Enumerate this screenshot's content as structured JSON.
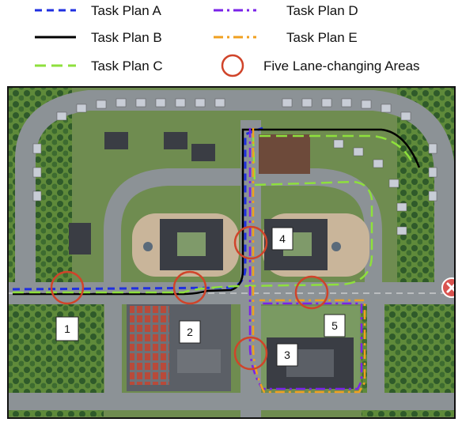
{
  "legend": {
    "items": [
      {
        "label": "Task Plan A",
        "color": "#1f2fe0",
        "style": "dashed"
      },
      {
        "label": "Task Plan B",
        "color": "#000000",
        "style": "solid"
      },
      {
        "label": "Task Plan C",
        "color": "#8ee03c",
        "style": "long-dash"
      },
      {
        "label": "Task Plan D",
        "color": "#7a22e8",
        "style": "dash-dot"
      },
      {
        "label": "Task Plan E",
        "color": "#f0a020",
        "style": "dash-dot"
      },
      {
        "label": "Five Lane-changing Areas",
        "color": "#d0442a",
        "style": "circle"
      }
    ]
  },
  "map": {
    "area_labels": [
      "1",
      "2",
      "3",
      "4",
      "5"
    ],
    "colors": {
      "road": "#8c9296",
      "grass": "#5f8a3a",
      "tree": "#2f5a2a",
      "plaza": "#c9b59a",
      "building": "#3a3d44",
      "house": "#c8cdd6",
      "close_button": "#d9534f"
    },
    "close_icon": "close-icon"
  }
}
